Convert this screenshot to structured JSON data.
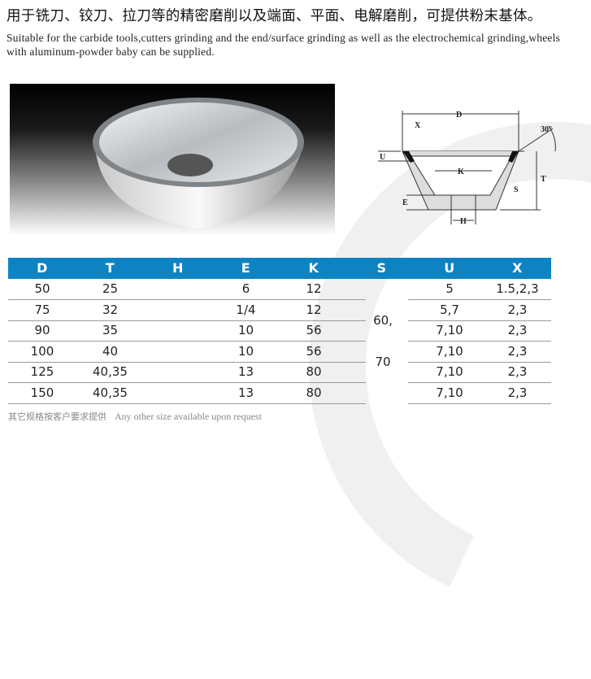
{
  "heading_cn": "用于铣刀、铰刀、拉刀等的精密磨削以及端面、平面、电解磨削，可提供粉末基体。",
  "heading_en": "Suitable for the carbide tools,cutters grinding and the end/surface grinding as well as the electrochemical grinding,wheels with aluminum-powder baby can be supplied.",
  "diagram": {
    "labels": {
      "D": "D",
      "X": "X",
      "U": "U",
      "K": "K",
      "T": "T",
      "S": "S",
      "E": "E",
      "H": "H",
      "angle": "30°"
    }
  },
  "table": {
    "header_color": "#0e83c4",
    "columns": [
      "D",
      "T",
      "H",
      "E",
      "K",
      "S",
      "U",
      "X"
    ],
    "rows": [
      {
        "D": "50",
        "T": "25",
        "H": "",
        "E": "6",
        "K": "12",
        "U": "5",
        "X": "1.5,2,3"
      },
      {
        "D": "75",
        "T": "32",
        "H": "",
        "E": "1/4",
        "K": "12",
        "U": "5,7",
        "X": "2,3"
      },
      {
        "D": "90",
        "T": "35",
        "H": "",
        "E": "10",
        "K": "56",
        "U": "7,10",
        "X": "2,3"
      },
      {
        "D": "100",
        "T": "40",
        "H": "",
        "E": "10",
        "K": "56",
        "U": "7,10",
        "X": "2,3"
      },
      {
        "D": "125",
        "T": "40,35",
        "H": "",
        "E": "13",
        "K": "80",
        "U": "7,10",
        "X": "2,3"
      },
      {
        "D": "150",
        "T": "40,35",
        "H": "",
        "E": "13",
        "K": "80",
        "U": "7,10",
        "X": "2,3"
      }
    ],
    "S_values": [
      "60,",
      "70"
    ]
  },
  "footer_cn": "其它规格按客户要求提供",
  "footer_en": "Any other size available upon request"
}
